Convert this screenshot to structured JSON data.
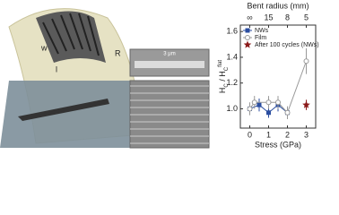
{
  "illustration": {
    "labels": [
      "w",
      "l",
      "R",
      "3 μm"
    ]
  },
  "chart_data": {
    "type": "line",
    "top_axis": {
      "label": "Bent radius (mm)",
      "ticks": [
        {
          "value": 0,
          "label": "∞"
        },
        {
          "value": 1,
          "label": "15"
        },
        {
          "value": 2,
          "label": "8"
        },
        {
          "value": 3,
          "label": "5"
        }
      ]
    },
    "xlabel": "Stress (GPa)",
    "ylabel": [
      "H",
      "C",
      " / H",
      "C",
      "flat"
    ],
    "xlim": [
      -0.5,
      3.5
    ],
    "xticks": [
      0,
      1,
      2,
      3
    ],
    "ylim": [
      0.85,
      1.65
    ],
    "yticks": [
      {
        "value": 1.0,
        "label": "1.0"
      },
      1.2,
      1.4,
      1.6
    ],
    "legend": "upper left",
    "series": [
      {
        "name": "NWs",
        "color": "#2b4ea0",
        "marker": "square",
        "x": [
          0,
          0.5,
          1,
          1.5,
          2
        ],
        "values": [
          1.0,
          1.03,
          0.97,
          1.03,
          0.97
        ],
        "errors": [
          0.04,
          0.05,
          0.04,
          0.05,
          0.04
        ]
      },
      {
        "name": "Film",
        "color": "#999999",
        "marker": "circle",
        "x": [
          0,
          0.25,
          1,
          1.5,
          2,
          3
        ],
        "values": [
          1.0,
          1.05,
          1.05,
          1.05,
          0.97,
          1.37
        ],
        "errors": [
          0.05,
          0.05,
          0.05,
          0.05,
          0.05,
          0.1
        ]
      },
      {
        "name": "After 100 cycles (NWs)",
        "color": "#8b1a1a",
        "marker": "star",
        "x": [
          3
        ],
        "values": [
          1.03
        ],
        "errors": [
          0.04
        ]
      }
    ]
  }
}
